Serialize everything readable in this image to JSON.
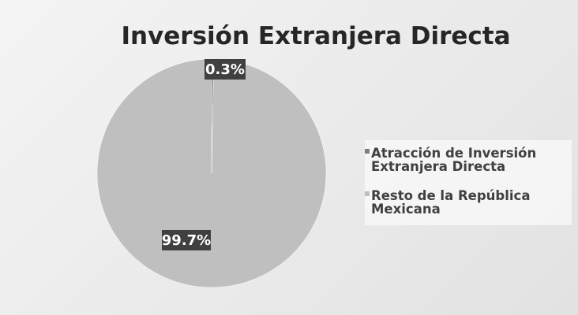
{
  "chart_data": {
    "type": "pie",
    "title": "Inversión Extranjera Directa",
    "categories": [
      "Atracción de Inversión Extranjera Directa",
      "Resto de la República Mexicana"
    ],
    "values": [
      0.3,
      99.7
    ],
    "value_labels": [
      "0.3%",
      "99.7%"
    ],
    "colors": [
      "#7f7f7f",
      "#bfbfbf"
    ],
    "legend": "right"
  }
}
